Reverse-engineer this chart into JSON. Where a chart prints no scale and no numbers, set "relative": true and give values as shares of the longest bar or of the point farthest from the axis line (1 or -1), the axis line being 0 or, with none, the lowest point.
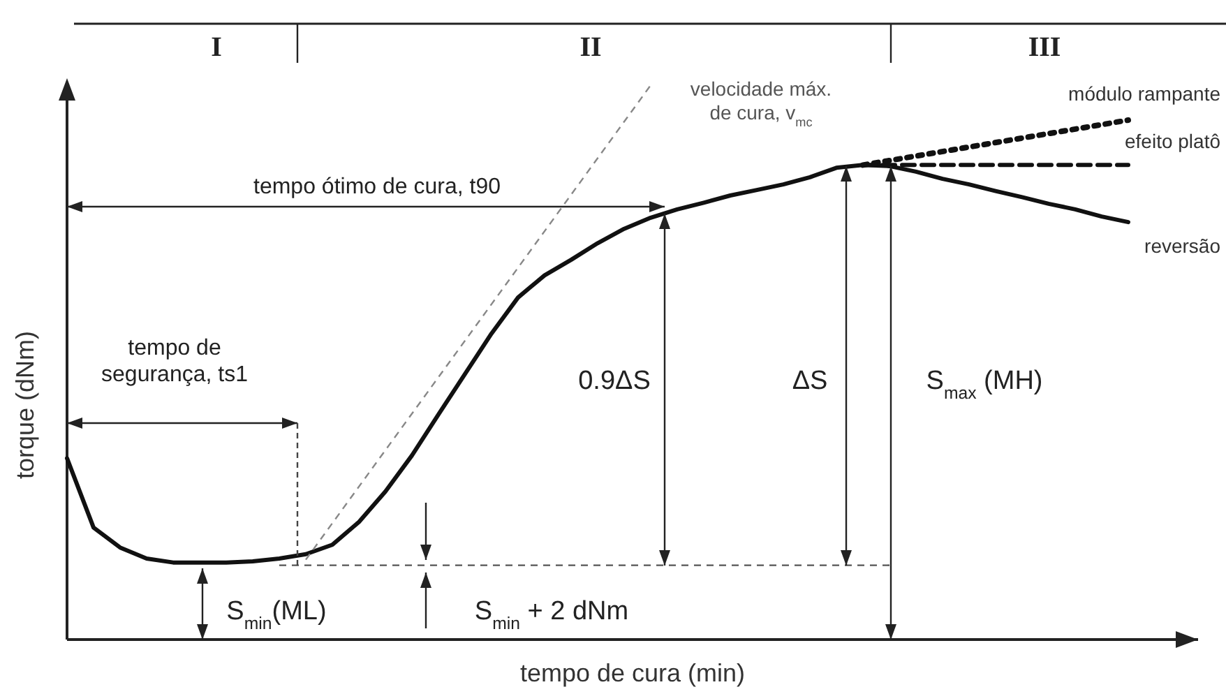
{
  "chart_data": {
    "type": "line",
    "relative": true,
    "xlabel": "tempo de cura (min)",
    "ylabel": "torque (dNm)",
    "grid": false,
    "legend": false,
    "marker": "none",
    "categories": [
      null,
      null,
      null,
      null,
      null,
      null,
      null,
      null,
      null,
      null,
      null,
      null,
      null,
      null,
      null,
      null,
      null,
      null,
      null,
      null,
      null,
      null,
      null,
      null,
      null,
      null,
      null,
      null,
      null,
      null,
      null,
      null,
      null,
      null,
      null,
      null,
      null,
      null,
      null,
      null,
      null
    ],
    "series": [
      {
        "name": "reversão",
        "color": "#111111",
        "line_style": "solid",
        "values": [
          0.327,
          0.202,
          0.166,
          0.146,
          0.139,
          0.139,
          0.139,
          0.141,
          0.146,
          0.154,
          0.171,
          0.212,
          0.267,
          0.332,
          0.406,
          0.479,
          0.552,
          0.617,
          0.657,
          0.685,
          0.715,
          0.741,
          0.761,
          0.776,
          0.788,
          0.801,
          0.811,
          0.821,
          0.834,
          0.851,
          0.856,
          0.854,
          0.844,
          0.831,
          0.821,
          0.809,
          0.798,
          0.786,
          0.776,
          0.763,
          0.753
        ]
      },
      {
        "name": "módulo rampante",
        "color": "#111111",
        "line_style": "dotted",
        "values": [
          null,
          null,
          null,
          null,
          null,
          null,
          null,
          null,
          null,
          null,
          null,
          null,
          null,
          null,
          null,
          null,
          null,
          null,
          null,
          null,
          null,
          null,
          null,
          null,
          null,
          null,
          null,
          null,
          null,
          null,
          0.856,
          null,
          null,
          null,
          null,
          null,
          null,
          null,
          null,
          null,
          0.937
        ]
      },
      {
        "name": "efeito platô",
        "color": "#111111",
        "line_style": "dashed",
        "values": [
          null,
          null,
          null,
          null,
          null,
          null,
          null,
          null,
          null,
          null,
          null,
          null,
          null,
          null,
          null,
          null,
          null,
          null,
          null,
          null,
          null,
          null,
          null,
          null,
          null,
          null,
          null,
          null,
          null,
          null,
          0.856,
          null,
          null,
          null,
          null,
          null,
          null,
          null,
          null,
          null,
          0.856
        ]
      },
      {
        "color": "#888888",
        "line_style": "dashed",
        "values": [
          null,
          null,
          null,
          null,
          null,
          null,
          null,
          null,
          null,
          0.144,
          null,
          null,
          null,
          null,
          null,
          null,
          null,
          null,
          null,
          null,
          null,
          null,
          1,
          null,
          null,
          null,
          null,
          null,
          null,
          null,
          null,
          null,
          null,
          null,
          null,
          null,
          null,
          null,
          null,
          null,
          null
        ]
      },
      {
        "color": "#555555",
        "line_style": "dashed",
        "values": [
          null,
          null,
          null,
          null,
          null,
          null,
          null,
          null,
          0.134,
          null,
          null,
          null,
          null,
          null,
          null,
          null,
          null,
          null,
          null,
          null,
          null,
          null,
          null,
          null,
          null,
          null,
          null,
          null,
          null,
          null,
          null,
          0.134,
          null,
          null,
          null,
          null,
          null,
          null,
          null,
          null,
          null
        ]
      }
    ],
    "annotations": [
      "tempo ótimo de cura, t90",
      "tempo de\nsegurança, ts1",
      "0.9ΔS",
      "ΔS",
      "S$_{max}$ (MH)",
      "S$_{min}$(ML)",
      "S$_{min}$ + 2 dNm",
      "velocidade máx.\nde cura, v$_{mc}$",
      "I",
      "II",
      "III"
    ]
  }
}
